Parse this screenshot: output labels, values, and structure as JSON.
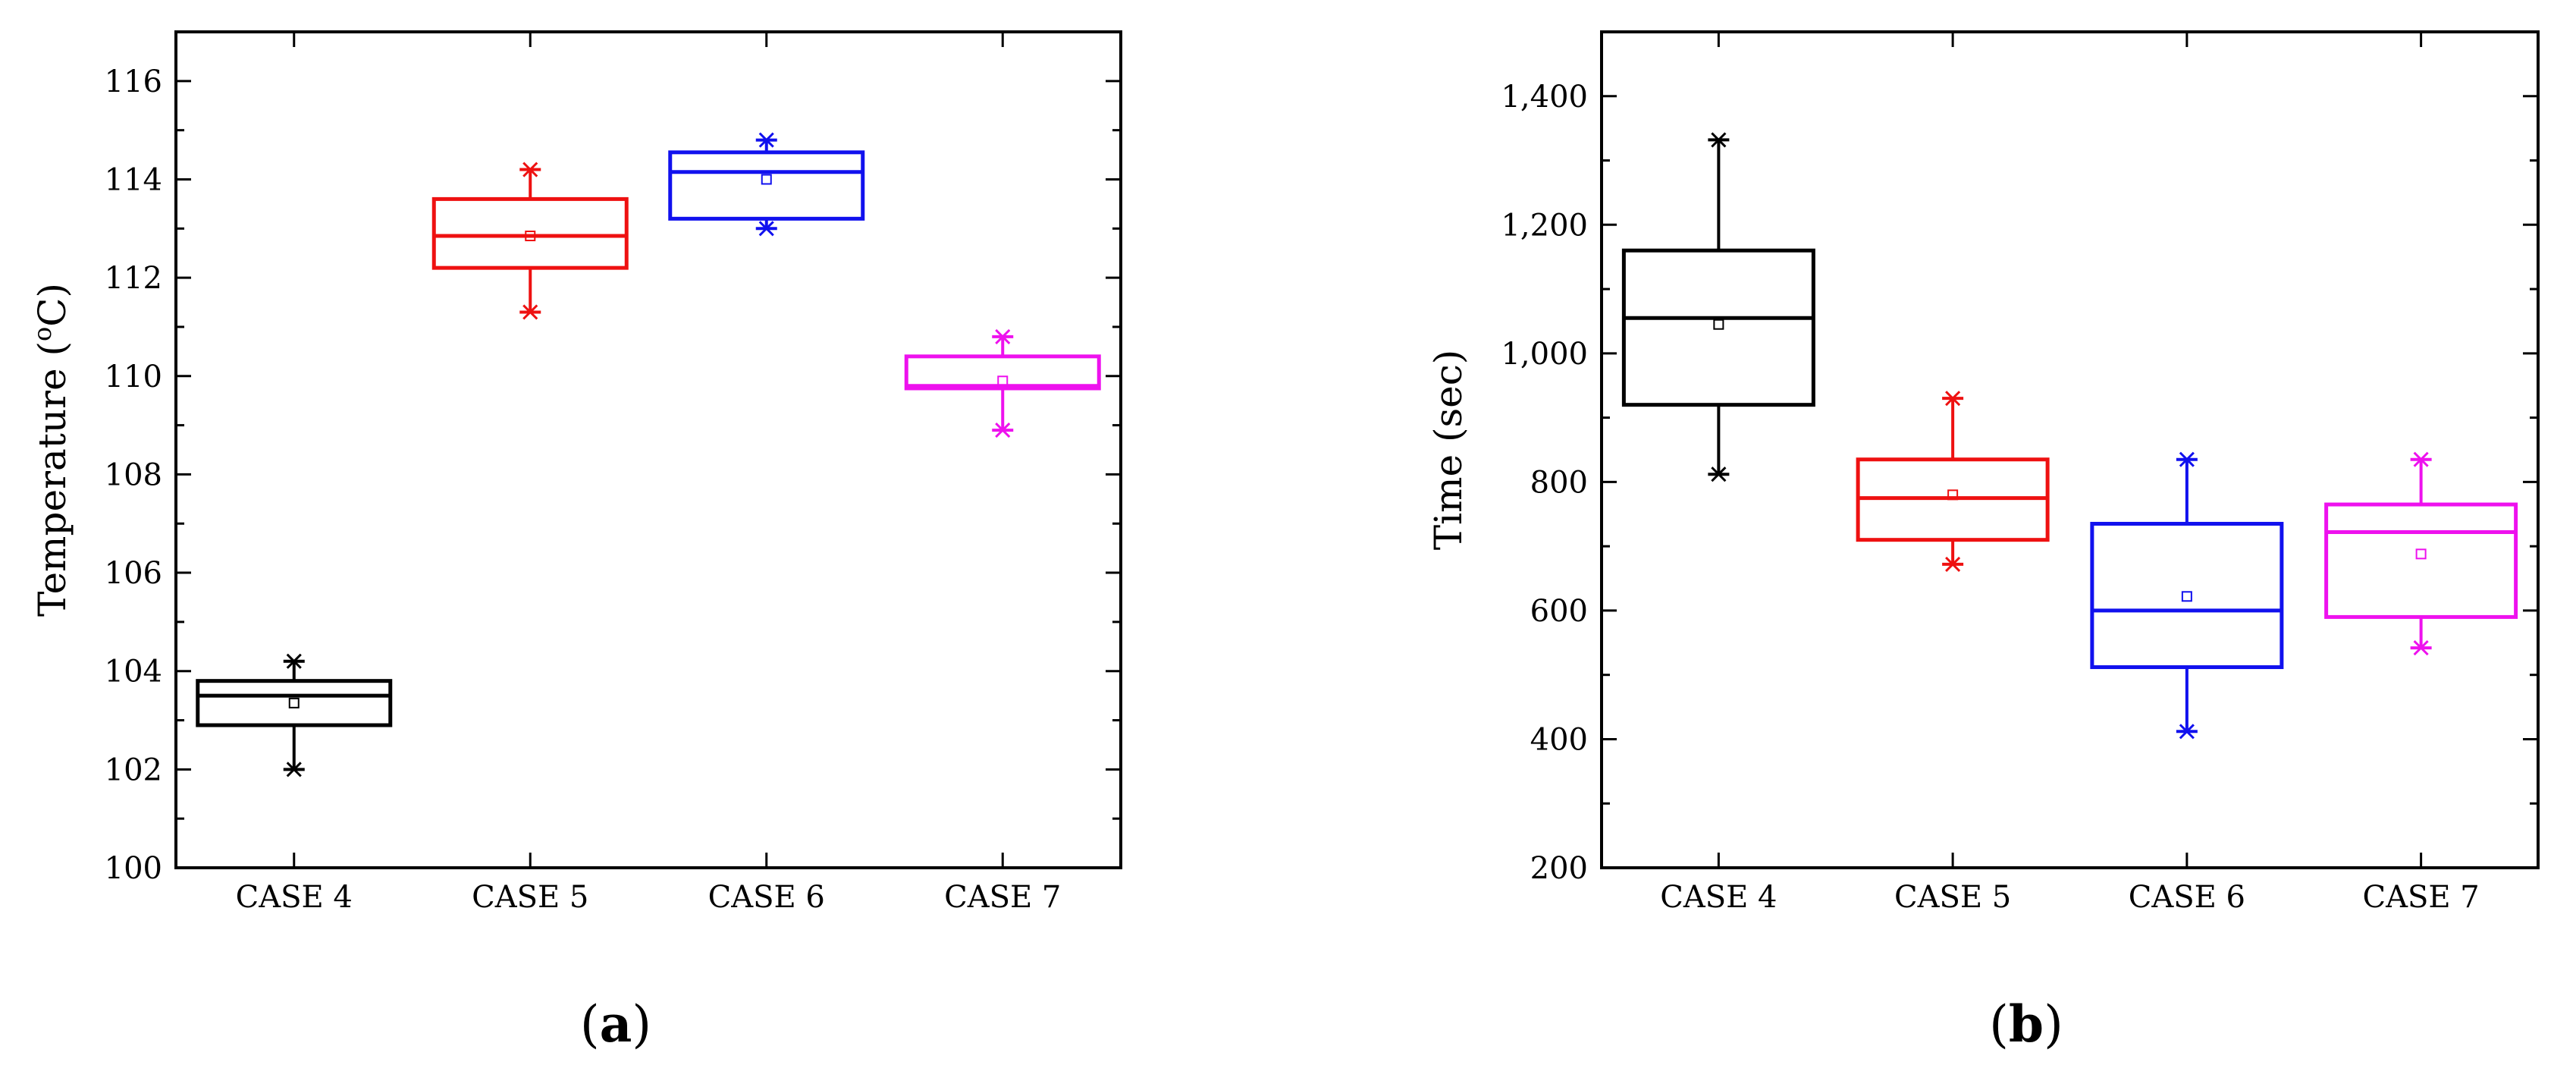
{
  "chart_data": [
    {
      "type": "box",
      "panel_label": "a",
      "xlabel": "",
      "ylabel": "Temperature (°C)",
      "ylim": [
        100,
        117
      ],
      "yticks": [
        "100",
        "102",
        "104",
        "106",
        "108",
        "110",
        "112",
        "114",
        "116"
      ],
      "ytick_values": [
        100,
        102,
        104,
        106,
        108,
        110,
        112,
        114,
        116
      ],
      "categories": [
        "CASE 4",
        "CASE 5",
        "CASE 6",
        "CASE 7"
      ],
      "boxes": [
        {
          "category": "CASE 4",
          "color": "#000000",
          "min": 102.0,
          "q1": 102.9,
          "median": 103.5,
          "q3": 103.8,
          "max": 104.2,
          "mean": 103.35
        },
        {
          "category": "CASE 5",
          "color": "#ee1111",
          "min": 111.3,
          "q1": 112.2,
          "median": 112.85,
          "q3": 113.6,
          "max": 114.2,
          "mean": 112.85
        },
        {
          "category": "CASE 6",
          "color": "#1111ee",
          "min": 113.0,
          "q1": 113.2,
          "median": 114.15,
          "q3": 114.55,
          "max": 114.8,
          "mean": 114.0
        },
        {
          "category": "CASE 7",
          "color": "#ee11ee",
          "min": 108.9,
          "q1": 109.75,
          "median": 109.8,
          "q3": 110.4,
          "max": 110.8,
          "mean": 109.9
        }
      ]
    },
    {
      "type": "box",
      "panel_label": "b",
      "xlabel": "",
      "ylabel": "Time (sec)",
      "ylim": [
        200,
        1500
      ],
      "yticks": [
        "200",
        "400",
        "600",
        "800",
        "1,000",
        "1,200",
        "1,400"
      ],
      "ytick_values": [
        200,
        400,
        600,
        800,
        1000,
        1200,
        1400
      ],
      "categories": [
        "CASE 4",
        "CASE 5",
        "CASE 6",
        "CASE 7"
      ],
      "boxes": [
        {
          "category": "CASE 4",
          "color": "#000000",
          "min": 812,
          "q1": 920,
          "median": 1055,
          "q3": 1160,
          "max": 1332,
          "mean": 1045
        },
        {
          "category": "CASE 5",
          "color": "#ee1111",
          "min": 672,
          "q1": 710,
          "median": 775,
          "q3": 835,
          "max": 930,
          "mean": 780
        },
        {
          "category": "CASE 6",
          "color": "#1111ee",
          "min": 412,
          "q1": 512,
          "median": 600,
          "q3": 735,
          "max": 835,
          "mean": 622
        },
        {
          "category": "CASE 7",
          "color": "#ee11ee",
          "min": 542,
          "q1": 590,
          "median": 722,
          "q3": 765,
          "max": 835,
          "mean": 688
        }
      ]
    }
  ]
}
